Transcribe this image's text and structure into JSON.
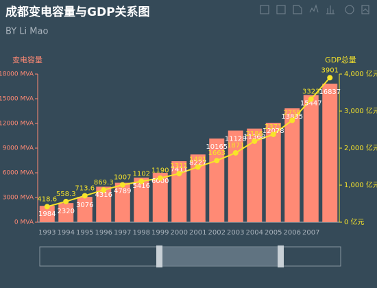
{
  "chart_data": {
    "type": "bar",
    "title": "成都变电容量与GDP关系图",
    "subtitle": "BY Li Mao",
    "ylabel": "变电容量",
    "y2label": "GDP总量",
    "categories": [
      "1993",
      "1994",
      "1995",
      "1996",
      "1997",
      "1998",
      "1999",
      "2000",
      "2001",
      "2002",
      "2003",
      "2004",
      "2005",
      "2006",
      "2007",
      null
    ],
    "series": [
      {
        "name": "变电容量",
        "type": "bar",
        "color": "#ff8a75",
        "values": [
          1984,
          2320,
          3076,
          4316,
          4789,
          5416,
          6000,
          7411,
          8227,
          10165,
          11128,
          11368,
          12078,
          13835,
          15447,
          16837
        ]
      },
      {
        "name": "GDP总量",
        "type": "line",
        "axis": "y2",
        "color": "#f7e42a",
        "values": [
          418.6,
          558.3,
          713.6,
          869.3,
          1007,
          1102,
          1190,
          1311,
          1491,
          1663,
          1871,
          2186,
          2371,
          2750,
          3323,
          3901
        ]
      }
    ],
    "ylim": [
      0,
      18000
    ],
    "yticks": [
      {
        "value": 0,
        "label": "0 MVA"
      },
      {
        "value": 3000,
        "label": "3000 MVA"
      },
      {
        "value": 6000,
        "label": "6000 MVA"
      },
      {
        "value": 9000,
        "label": "9000 MVA"
      },
      {
        "value": 12000,
        "label": "12000 MVA"
      },
      {
        "value": 15000,
        "label": "15000 MVA"
      },
      {
        "value": 18000,
        "label": "18000 MVA"
      }
    ],
    "y2lim": [
      0,
      4000
    ],
    "y2ticks": [
      {
        "value": 0,
        "label": "0 亿元"
      },
      {
        "value": 1000,
        "label": "1,000 亿元"
      },
      {
        "value": 2000,
        "label": "2,000 亿元"
      },
      {
        "value": 3000,
        "label": "3,000 亿元"
      },
      {
        "value": 4000,
        "label": "4,000 亿元"
      }
    ]
  }
}
